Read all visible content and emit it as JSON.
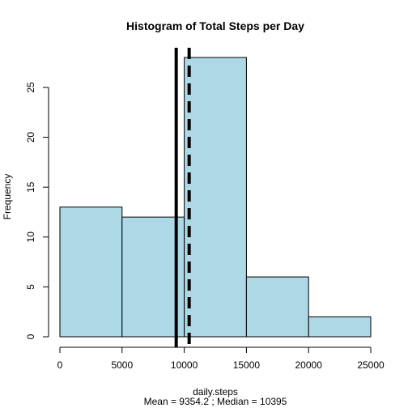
{
  "chart_data": {
    "type": "bar",
    "title": "Histogram of Total Steps per Day",
    "xlabel": "daily.steps",
    "sub_label": "Mean = 9354.2 ; Median = 10395",
    "ylabel": "Frequency",
    "bins": [
      {
        "from": 0,
        "to": 5000,
        "count": 13
      },
      {
        "from": 5000,
        "to": 10000,
        "count": 12
      },
      {
        "from": 10000,
        "to": 15000,
        "count": 28
      },
      {
        "from": 15000,
        "to": 20000,
        "count": 6
      },
      {
        "from": 20000,
        "to": 25000,
        "count": 2
      }
    ],
    "xlim": [
      0,
      25000
    ],
    "ylim": [
      0,
      28
    ],
    "x_ticks": [
      0,
      5000,
      10000,
      15000,
      20000,
      25000
    ],
    "y_ticks": [
      0,
      5,
      10,
      15,
      20,
      25
    ],
    "bar_color": "#add8e6",
    "vlines": [
      {
        "name": "Mean",
        "x": 9354.2,
        "style": "solid"
      },
      {
        "name": "Median",
        "x": 10395,
        "style": "dashed"
      }
    ]
  }
}
